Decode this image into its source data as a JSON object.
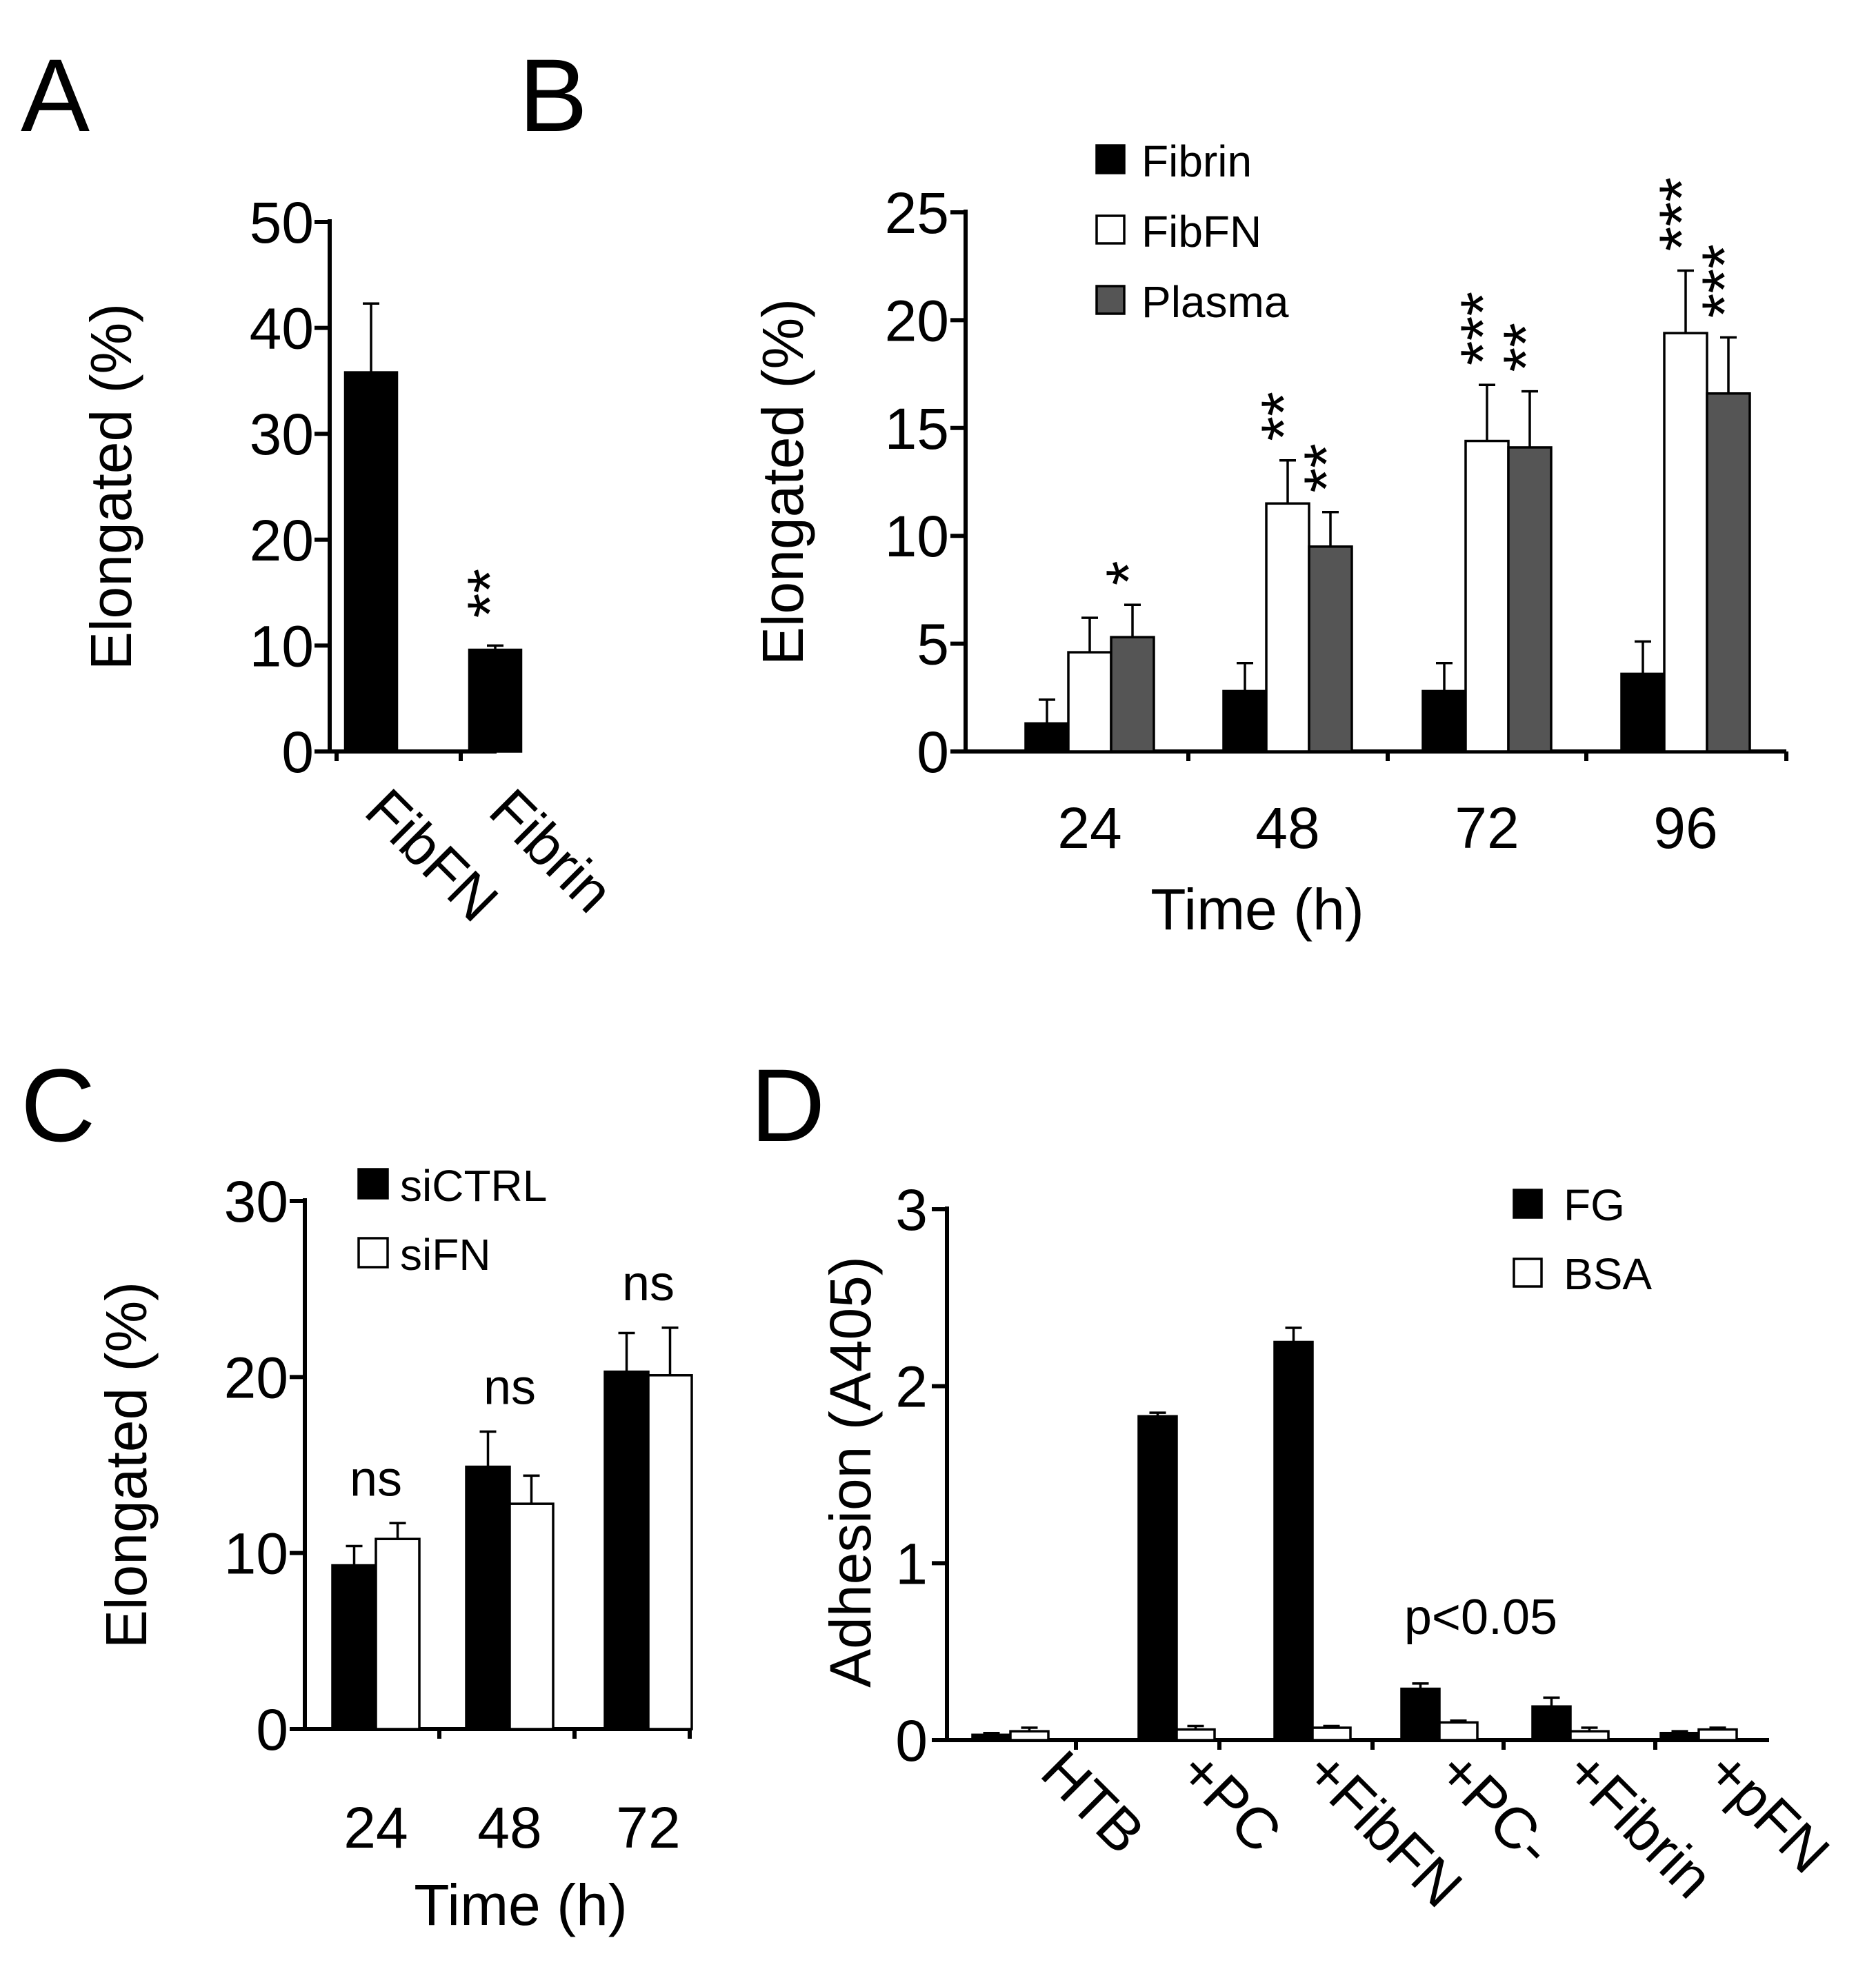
{
  "panels": {
    "A": {
      "label": "A"
    },
    "B": {
      "label": "B"
    },
    "C": {
      "label": "C"
    },
    "D": {
      "label": "D"
    }
  },
  "colors": {
    "black": "#000000",
    "white": "#ffffff",
    "gray": "#555555"
  },
  "chart_data": [
    {
      "id": "A",
      "type": "bar",
      "title": "",
      "xlabel": "",
      "ylabel": "Elongated (%)",
      "ylim": [
        0,
        50
      ],
      "yticks": [
        0,
        10,
        20,
        30,
        40,
        50
      ],
      "categories": [
        "FibFN",
        "Fibrin"
      ],
      "series": [
        {
          "name": "",
          "color": "#000000",
          "values": [
            35.8,
            9.6
          ],
          "errors": [
            6.5,
            0.4
          ]
        }
      ],
      "annotations": [
        {
          "category": 1,
          "text": "**"
        }
      ]
    },
    {
      "id": "B",
      "type": "bar",
      "title": "",
      "xlabel": "Time (h)",
      "ylabel": "Elongated (%)",
      "ylim": [
        0,
        25
      ],
      "yticks": [
        0,
        5,
        10,
        15,
        20,
        25
      ],
      "categories": [
        "24",
        "48",
        "72",
        "96"
      ],
      "series": [
        {
          "name": "Fibrin",
          "color": "#000000",
          "values": [
            1.3,
            2.8,
            2.8,
            3.6
          ],
          "errors": [
            1.1,
            1.3,
            1.3,
            1.5
          ]
        },
        {
          "name": "FibFN",
          "color": "#ffffff",
          "values": [
            4.6,
            11.5,
            14.4,
            19.4
          ],
          "errors": [
            1.6,
            2.0,
            2.6,
            2.9
          ]
        },
        {
          "name": "Plasma",
          "color": "#555555",
          "values": [
            5.3,
            9.5,
            14.1,
            16.6
          ],
          "errors": [
            1.5,
            1.6,
            2.6,
            2.6
          ]
        }
      ],
      "annotations": [
        {
          "category": 0,
          "series": 2,
          "text": "*"
        },
        {
          "category": 1,
          "series": 1,
          "text": "**"
        },
        {
          "category": 1,
          "series": 2,
          "text": "**"
        },
        {
          "category": 2,
          "series": 1,
          "text": "***"
        },
        {
          "category": 2,
          "series": 2,
          "text": "**"
        },
        {
          "category": 3,
          "series": 1,
          "text": "***"
        },
        {
          "category": 3,
          "series": 2,
          "text": "***"
        }
      ]
    },
    {
      "id": "C",
      "type": "bar",
      "title": "",
      "xlabel": "Time (h)",
      "ylabel": "Elongated (%)",
      "ylim": [
        0,
        30
      ],
      "yticks": [
        0,
        10,
        20,
        30
      ],
      "categories": [
        "24",
        "48",
        "72"
      ],
      "series": [
        {
          "name": "siCTRL",
          "color": "#000000",
          "values": [
            9.3,
            14.9,
            20.3
          ],
          "errors": [
            1.1,
            2.0,
            2.2
          ]
        },
        {
          "name": "siFN",
          "color": "#ffffff",
          "values": [
            10.8,
            12.8,
            20.1
          ],
          "errors": [
            0.9,
            1.6,
            2.7
          ]
        }
      ],
      "annotations": [
        {
          "category": 0,
          "text": "ns"
        },
        {
          "category": 1,
          "text": "ns"
        },
        {
          "category": 2,
          "text": "ns"
        }
      ]
    },
    {
      "id": "D",
      "type": "bar",
      "title": "",
      "xlabel": "",
      "ylabel": "Adhesion (A405)",
      "ylim": [
        0,
        3
      ],
      "yticks": [
        0,
        1,
        2,
        3
      ],
      "categories": [
        "HTB",
        "+PC",
        "+FibFN",
        "+PC-",
        "+Fibrin",
        "+pFN"
      ],
      "series": [
        {
          "name": "FG",
          "color": "#000000",
          "values": [
            0.03,
            1.83,
            2.25,
            0.29,
            0.19,
            0.04
          ],
          "errors": [
            0.01,
            0.02,
            0.08,
            0.03,
            0.05,
            0.01
          ]
        },
        {
          "name": "BSA",
          "color": "#ffffff",
          "values": [
            0.05,
            0.06,
            0.07,
            0.1,
            0.05,
            0.06
          ],
          "errors": [
            0.02,
            0.02,
            0.01,
            0.01,
            0.02,
            0.01
          ]
        }
      ],
      "annotations": [
        {
          "category": 3,
          "text": "p<0.05"
        }
      ]
    }
  ]
}
